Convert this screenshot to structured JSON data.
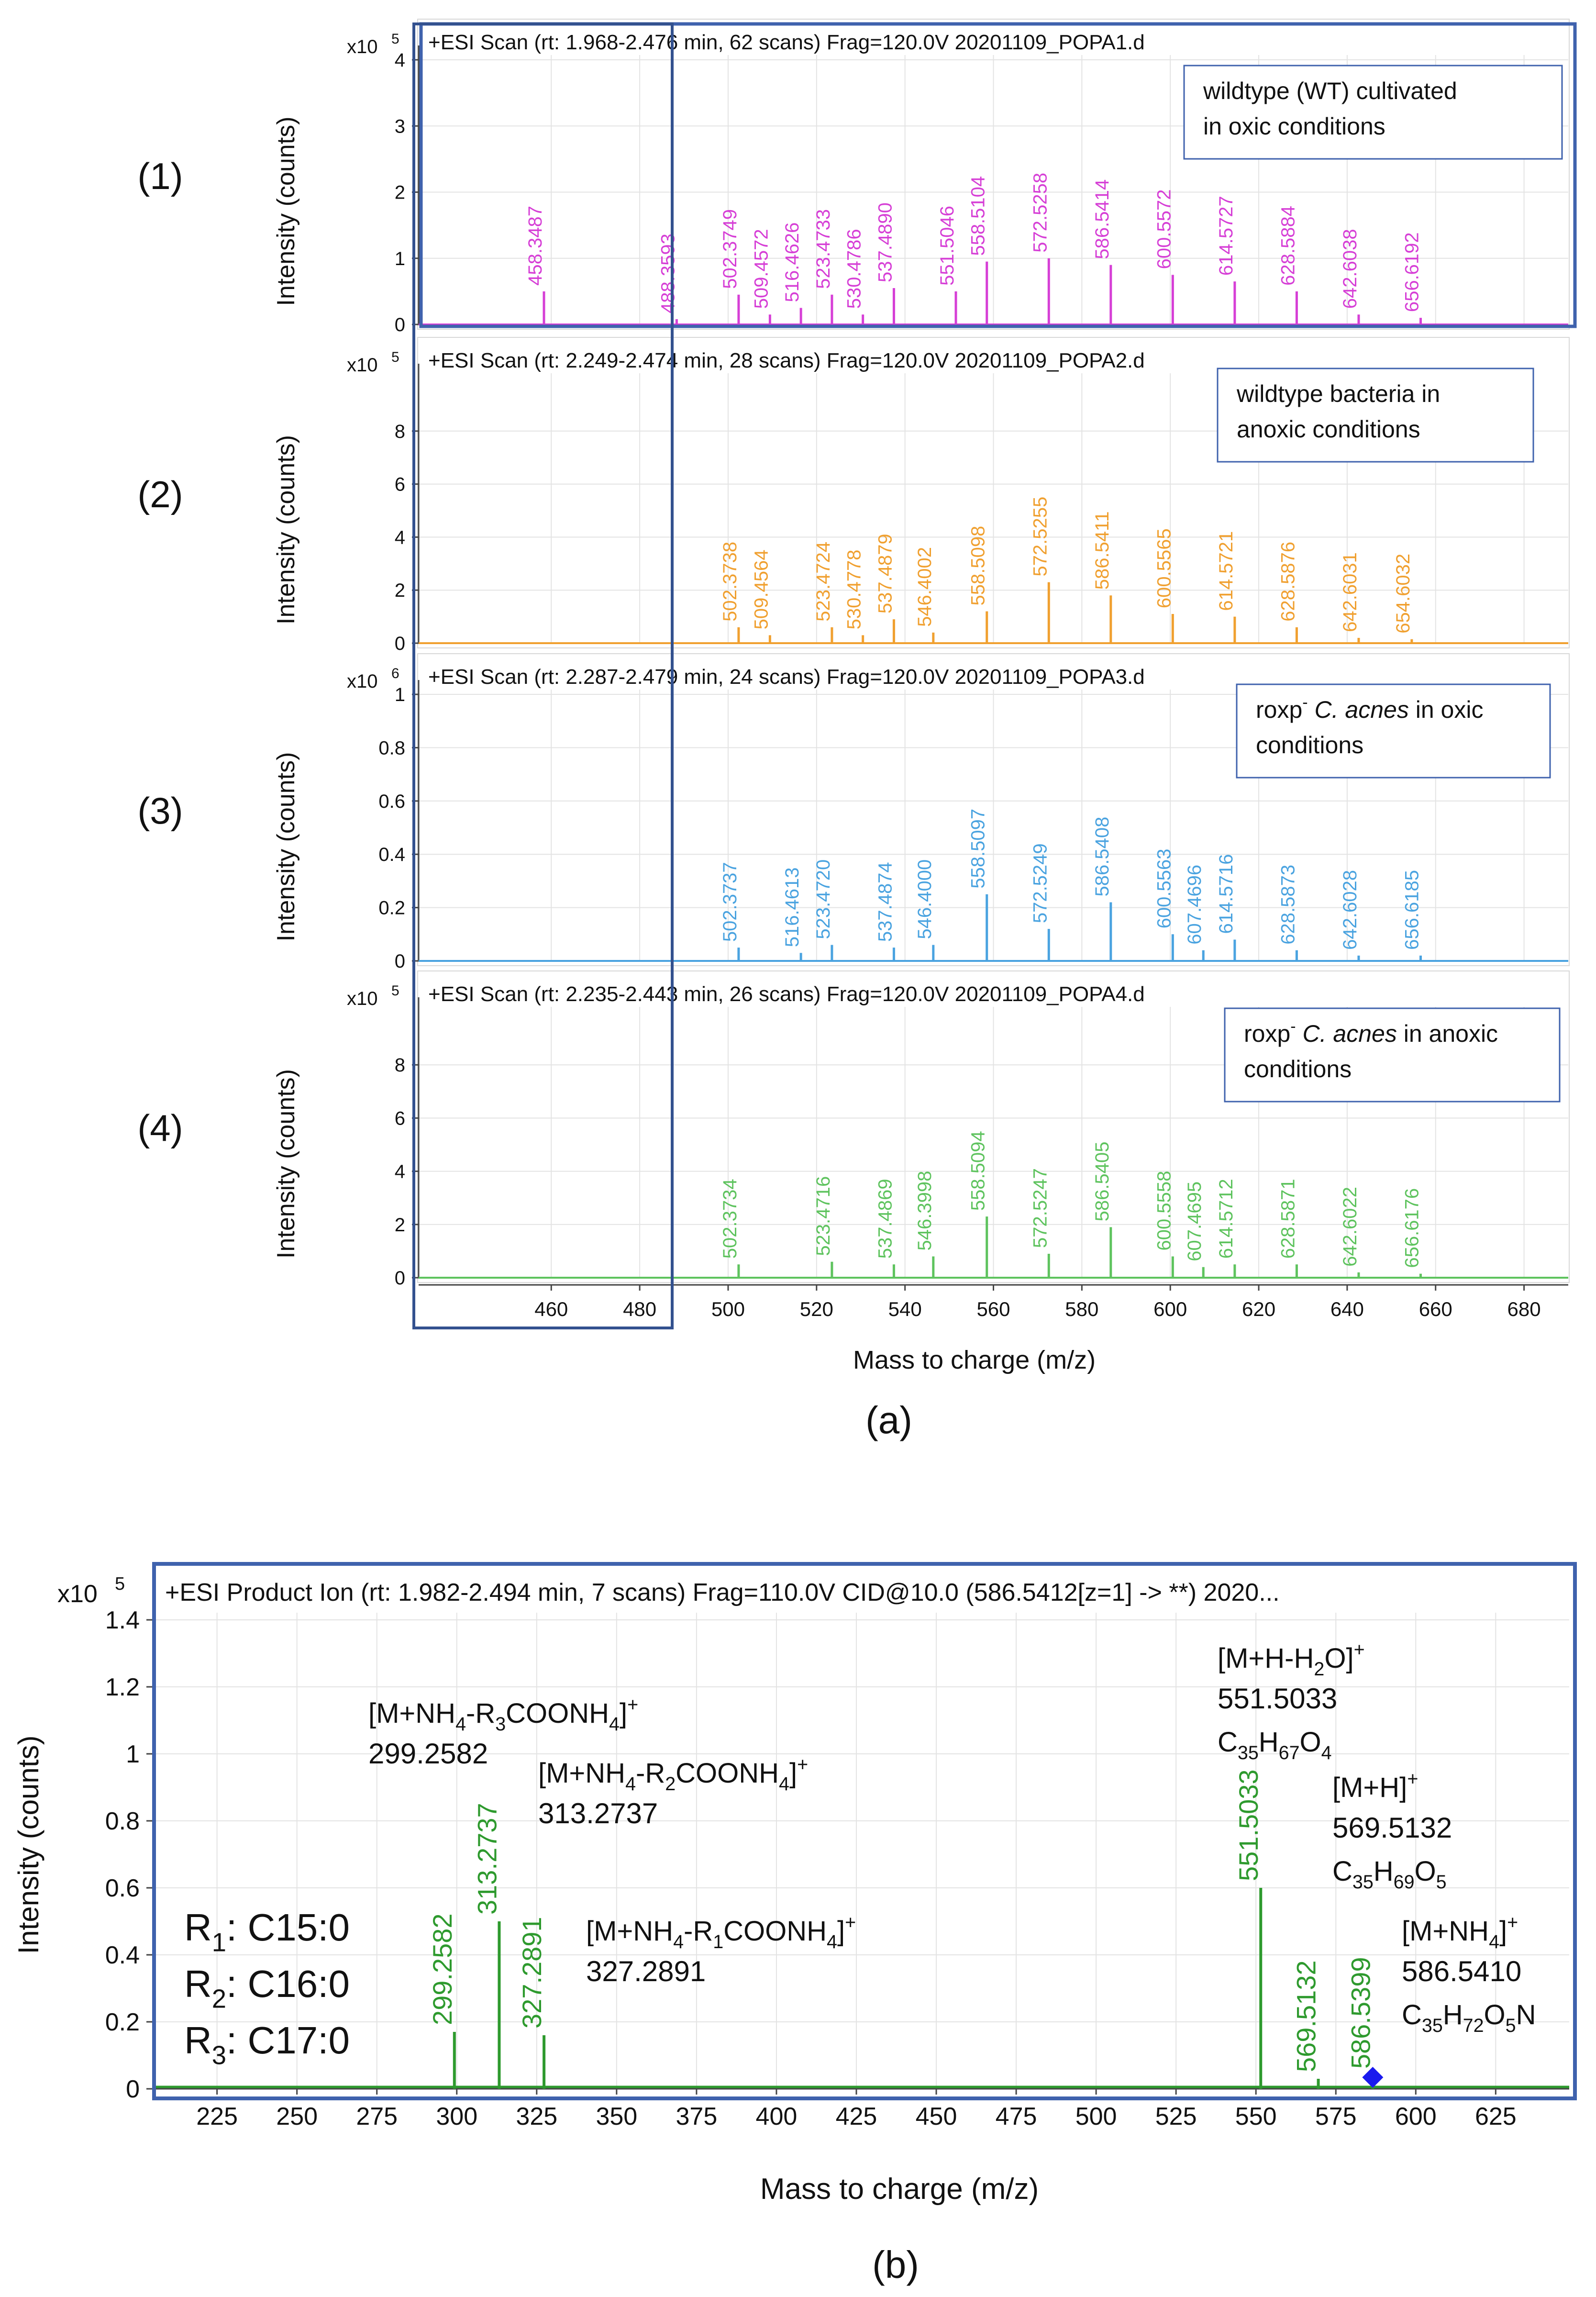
{
  "figure": {
    "colors": {
      "frame": "#3f62ad",
      "axis": "#444444",
      "grid": "#e3e3e3",
      "text": "#111111"
    },
    "panel_a": {
      "caption": "(a)",
      "xlabel": "Mass to charge (m/z)",
      "ylabel": "Intensity (counts)",
      "xlim": [
        430,
        690
      ],
      "xticks": [
        460,
        480,
        500,
        520,
        540,
        560,
        580,
        600,
        620,
        640,
        660,
        680
      ],
      "rows": [
        {
          "label": "(1)",
          "exponent_base": "x10",
          "exponent_power": "5",
          "header": "+ESI Scan (rt: 1.968-2.476 min, 62 scans) Frag=120.0V 20201109_POPA1.d",
          "annotation_lines": [
            {
              "segments": [
                {
                  "text": "wildtype (WT)  cultivated"
                }
              ]
            },
            {
              "segments": [
                {
                  "text": "in oxic  conditions"
                }
              ]
            }
          ],
          "color": "#d63fd6",
          "ylim": [
            0,
            4
          ],
          "yticks": [
            0,
            1,
            2,
            3,
            4
          ],
          "peaks": [
            {
              "x": 458.3487,
              "y": 0.5,
              "label": "458.3487"
            },
            {
              "x": 488.3593,
              "y": 0.08,
              "label": "488.3593"
            },
            {
              "x": 502.3749,
              "y": 0.45,
              "label": "502.3749"
            },
            {
              "x": 509.4572,
              "y": 0.15,
              "label": "509.4572"
            },
            {
              "x": 516.4626,
              "y": 0.25,
              "label": "516.4626"
            },
            {
              "x": 523.4733,
              "y": 0.45,
              "label": "523.4733"
            },
            {
              "x": 530.4786,
              "y": 0.15,
              "label": "530.4786"
            },
            {
              "x": 537.489,
              "y": 0.55,
              "label": "537.4890"
            },
            {
              "x": 551.5046,
              "y": 0.5,
              "label": "551.5046"
            },
            {
              "x": 558.5104,
              "y": 0.95,
              "label": "558.5104"
            },
            {
              "x": 572.5258,
              "y": 1.0,
              "label": "572.5258"
            },
            {
              "x": 586.5414,
              "y": 0.9,
              "label": "586.5414"
            },
            {
              "x": 600.5572,
              "y": 0.75,
              "label": "600.5572"
            },
            {
              "x": 614.5727,
              "y": 0.65,
              "label": "614.5727"
            },
            {
              "x": 628.5884,
              "y": 0.5,
              "label": "628.5884"
            },
            {
              "x": 642.6038,
              "y": 0.15,
              "label": "642.6038"
            },
            {
              "x": 656.6192,
              "y": 0.1,
              "label": "656.6192"
            }
          ]
        },
        {
          "label": "(2)",
          "exponent_base": "x10",
          "exponent_power": "5",
          "header": "+ESI Scan (rt: 2.249-2.474 min, 28 scans) Frag=120.0V 20201109_POPA2.d",
          "annotation_lines": [
            {
              "segments": [
                {
                  "text": "wildtype bacteria in"
                }
              ]
            },
            {
              "segments": [
                {
                  "text": "anoxic conditions"
                }
              ]
            }
          ],
          "color": "#f0a030",
          "ylim": [
            0,
            10
          ],
          "yticks": [
            0,
            2,
            4,
            6,
            8
          ],
          "peaks": [
            {
              "x": 502.3738,
              "y": 0.6,
              "label": "502.3738"
            },
            {
              "x": 509.4564,
              "y": 0.3,
              "label": "509.4564"
            },
            {
              "x": 523.4724,
              "y": 0.6,
              "label": "523.4724"
            },
            {
              "x": 530.4778,
              "y": 0.3,
              "label": "530.4778"
            },
            {
              "x": 537.4879,
              "y": 0.9,
              "label": "537.4879"
            },
            {
              "x": 546.4002,
              "y": 0.4,
              "label": "546.4002"
            },
            {
              "x": 558.5098,
              "y": 1.2,
              "label": "558.5098"
            },
            {
              "x": 572.5255,
              "y": 2.3,
              "label": "572.5255"
            },
            {
              "x": 586.5411,
              "y": 1.8,
              "label": "586.5411"
            },
            {
              "x": 600.5565,
              "y": 1.1,
              "label": "600.5565"
            },
            {
              "x": 614.5721,
              "y": 1.0,
              "label": "614.5721"
            },
            {
              "x": 628.5876,
              "y": 0.6,
              "label": "628.5876"
            },
            {
              "x": 642.6031,
              "y": 0.2,
              "label": "642.6031"
            },
            {
              "x": 654.6032,
              "y": 0.15,
              "label": "654.6032"
            }
          ]
        },
        {
          "label": "(3)",
          "exponent_base": "x10",
          "exponent_power": "6",
          "header": "+ESI Scan (rt: 2.287-2.479 min, 24 scans) Frag=120.0V 20201109_POPA3.d",
          "annotation_lines": [
            {
              "segments": [
                {
                  "text": "roxp"
                },
                {
                  "text": "-",
                  "sup": true
                },
                {
                  "text": " "
                },
                {
                  "text": "C. acnes",
                  "italic": true
                },
                {
                  "text": " in oxic"
                }
              ]
            },
            {
              "segments": [
                {
                  "text": "conditions"
                }
              ]
            }
          ],
          "color": "#4aa3e0",
          "ylim": [
            0,
            1
          ],
          "yticks": [
            0,
            0.2,
            0.4,
            0.6,
            0.8,
            1
          ],
          "peaks": [
            {
              "x": 502.3737,
              "y": 0.05,
              "label": "502.3737"
            },
            {
              "x": 516.4613,
              "y": 0.03,
              "label": "516.4613"
            },
            {
              "x": 523.472,
              "y": 0.06,
              "label": "523.4720"
            },
            {
              "x": 537.4874,
              "y": 0.05,
              "label": "537.4874"
            },
            {
              "x": 546.4,
              "y": 0.06,
              "label": "546.4000"
            },
            {
              "x": 558.5097,
              "y": 0.25,
              "label": "558.5097"
            },
            {
              "x": 572.5249,
              "y": 0.12,
              "label": "572.5249"
            },
            {
              "x": 586.5408,
              "y": 0.22,
              "label": "586.5408"
            },
            {
              "x": 600.5563,
              "y": 0.1,
              "label": "600.5563"
            },
            {
              "x": 607.4696,
              "y": 0.04,
              "label": "607.4696"
            },
            {
              "x": 614.5716,
              "y": 0.08,
              "label": "614.5716"
            },
            {
              "x": 628.5873,
              "y": 0.04,
              "label": "628.5873"
            },
            {
              "x": 642.6028,
              "y": 0.02,
              "label": "642.6028"
            },
            {
              "x": 656.6185,
              "y": 0.02,
              "label": "656.6185"
            }
          ]
        },
        {
          "label": "(4)",
          "exponent_base": "x10",
          "exponent_power": "5",
          "header": "+ESI Scan (rt: 2.235-2.443 min, 26 scans) Frag=120.0V 20201109_POPA4.d",
          "annotation_lines": [
            {
              "segments": [
                {
                  "text": "roxp"
                },
                {
                  "text": "-",
                  "sup": true
                },
                {
                  "text": " "
                },
                {
                  "text": "C. acnes",
                  "italic": true
                },
                {
                  "text": " in anoxic"
                }
              ]
            },
            {
              "segments": [
                {
                  "text": "conditions"
                }
              ]
            }
          ],
          "color": "#5ec35e",
          "ylim": [
            0,
            10
          ],
          "yticks": [
            0,
            2,
            4,
            6,
            8
          ],
          "peaks": [
            {
              "x": 502.3734,
              "y": 0.5,
              "label": "502.3734"
            },
            {
              "x": 523.4716,
              "y": 0.6,
              "label": "523.4716"
            },
            {
              "x": 537.4869,
              "y": 0.5,
              "label": "537.4869"
            },
            {
              "x": 546.3998,
              "y": 0.8,
              "label": "546.3998"
            },
            {
              "x": 558.5094,
              "y": 2.3,
              "label": "558.5094"
            },
            {
              "x": 572.5247,
              "y": 0.9,
              "label": "572.5247"
            },
            {
              "x": 586.5405,
              "y": 1.9,
              "label": "586.5405"
            },
            {
              "x": 600.5558,
              "y": 0.8,
              "label": "600.5558"
            },
            {
              "x": 607.4695,
              "y": 0.4,
              "label": "607.4695"
            },
            {
              "x": 614.5712,
              "y": 0.5,
              "label": "614.5712"
            },
            {
              "x": 628.5871,
              "y": 0.5,
              "label": "628.5871"
            },
            {
              "x": 642.6022,
              "y": 0.2,
              "label": "642.6022"
            },
            {
              "x": 656.6176,
              "y": 0.15,
              "label": "656.6176"
            }
          ]
        }
      ]
    },
    "panel_b": {
      "caption": "(b)",
      "exponent_base": "x10",
      "exponent_power": "5",
      "header": "+ESI Product Ion (rt: 1.982-2.494 min, 7 scans) Frag=110.0V CID@10.0 (586.5412[z=1] -> **) 2020...",
      "xlabel": "Mass to charge (m/z)",
      "ylabel": "Intensity (counts)",
      "color": "#2e9a2e",
      "marker_color": "#1a1aee",
      "xlim": [
        205,
        648
      ],
      "ylim": [
        0,
        1.5
      ],
      "xticks": [
        225,
        250,
        275,
        300,
        325,
        350,
        375,
        400,
        425,
        450,
        475,
        500,
        525,
        550,
        575,
        600,
        625
      ],
      "yticks": [
        0,
        0.2,
        0.4,
        0.6,
        0.8,
        1,
        1.2,
        1.4
      ],
      "peaks": [
        {
          "x": 299.2582,
          "y": 0.17,
          "label": "299.2582"
        },
        {
          "x": 313.2737,
          "y": 0.5,
          "label": "313.2737"
        },
        {
          "x": 327.2891,
          "y": 0.16,
          "label": "327.2891"
        },
        {
          "x": 551.5033,
          "y": 0.6,
          "label": "551.5033"
        },
        {
          "x": 569.5132,
          "y": 0.03,
          "label": "569.5132"
        },
        {
          "x": 586.5399,
          "y": 0.04,
          "label": "586.5399",
          "marker": true
        }
      ],
      "r_groups": [
        {
          "prefix": "R",
          "sub": "1",
          "rest": ": C15:0"
        },
        {
          "prefix": "R",
          "sub": "2",
          "rest": ": C16:0"
        },
        {
          "prefix": "R",
          "sub": "3",
          "rest": ": C17:0"
        }
      ],
      "annotations": [
        {
          "id": "r3",
          "ion": [
            {
              "t": "[M+NH"
            },
            {
              "t": "4",
              "sub": true
            },
            {
              "t": "-R"
            },
            {
              "t": "3",
              "sub": true
            },
            {
              "t": "COONH"
            },
            {
              "t": "4",
              "sub": true
            },
            {
              "t": "]"
            },
            {
              "t": "+",
              "sup": true
            }
          ],
          "mass": "299.2582"
        },
        {
          "id": "r2",
          "ion": [
            {
              "t": "[M+NH"
            },
            {
              "t": "4",
              "sub": true
            },
            {
              "t": "-R"
            },
            {
              "t": "2",
              "sub": true
            },
            {
              "t": "COONH"
            },
            {
              "t": "4",
              "sub": true
            },
            {
              "t": "]"
            },
            {
              "t": "+",
              "sup": true
            }
          ],
          "mass": "313.2737"
        },
        {
          "id": "r1",
          "ion": [
            {
              "t": "[M+NH"
            },
            {
              "t": "4",
              "sub": true
            },
            {
              "t": "-R"
            },
            {
              "t": "1",
              "sub": true
            },
            {
              "t": "COONH"
            },
            {
              "t": "4",
              "sub": true
            },
            {
              "t": "]"
            },
            {
              "t": "+",
              "sup": true
            }
          ],
          "mass": "327.2891"
        },
        {
          "id": "h2o",
          "ion": [
            {
              "t": "[M+H-H"
            },
            {
              "t": "2",
              "sub": true
            },
            {
              "t": "O]"
            },
            {
              "t": "+",
              "sup": true
            }
          ],
          "mass": "551.5033",
          "formula": [
            {
              "t": "C"
            },
            {
              "t": "35",
              "sub": true
            },
            {
              "t": "H"
            },
            {
              "t": "67",
              "sub": true
            },
            {
              "t": "O"
            },
            {
              "t": "4",
              "sub": true
            }
          ]
        },
        {
          "id": "mh",
          "ion": [
            {
              "t": "[M+H]"
            },
            {
              "t": "+",
              "sup": true
            }
          ],
          "mass": "569.5132",
          "formula": [
            {
              "t": "C"
            },
            {
              "t": "35",
              "sub": true
            },
            {
              "t": "H"
            },
            {
              "t": "69",
              "sub": true
            },
            {
              "t": "O"
            },
            {
              "t": "5",
              "sub": true
            }
          ]
        },
        {
          "id": "mnh4",
          "ion": [
            {
              "t": "[M+NH"
            },
            {
              "t": "4",
              "sub": true
            },
            {
              "t": "]"
            },
            {
              "t": "+",
              "sup": true
            }
          ],
          "mass": "586.5410",
          "formula": [
            {
              "t": "C"
            },
            {
              "t": "35",
              "sub": true
            },
            {
              "t": "H"
            },
            {
              "t": "72",
              "sub": true
            },
            {
              "t": "O"
            },
            {
              "t": "5",
              "sub": true
            },
            {
              "t": "N"
            }
          ]
        }
      ]
    }
  }
}
